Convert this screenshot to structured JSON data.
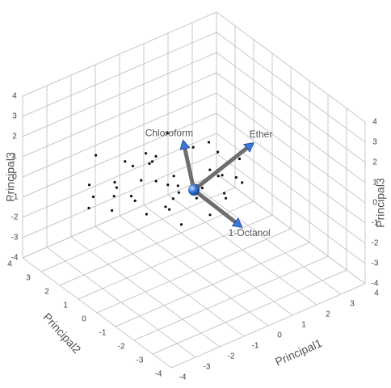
{
  "chart_data": {
    "type": "scatter3d",
    "x_label": "Principal1",
    "y_label": "Principal2",
    "z_label": "Principal3",
    "xlim": [
      -4,
      4
    ],
    "ylim": [
      -4,
      4
    ],
    "zlim": [
      -4,
      4
    ],
    "xticks": [
      -4,
      -3,
      -2,
      -1,
      0,
      1,
      2,
      3,
      4
    ],
    "yticks": [
      -4,
      -3,
      -2,
      -1,
      0,
      1,
      2,
      3,
      4
    ],
    "zticks": [
      -4,
      -3,
      -2,
      -1,
      0,
      1,
      2,
      3,
      4
    ],
    "grid": true,
    "point_color": "#111111",
    "points": {
      "x": [
        -3,
        -2.8,
        -2.5,
        -2.4,
        -2.2,
        -2,
        -1.9,
        -1.8,
        -1.6,
        -1.5,
        -1.4,
        -1.2,
        -1.1,
        -1,
        -0.9,
        -0.8,
        -0.7,
        -0.6,
        -0.5,
        -0.4,
        -0.3,
        -0.2,
        -0.1,
        0,
        0.1,
        0.2,
        0.3,
        0.4,
        0.5,
        0.6,
        0.7,
        0.8,
        0.9,
        1,
        1.1,
        1.2,
        1.3,
        1.4,
        1.5,
        1.6,
        -1.3,
        -0.6,
        0.2,
        -2.1,
        0.8
      ],
      "y": [
        1.5,
        2,
        1,
        2.5,
        0.5,
        1.8,
        2.8,
        0.2,
        1.2,
        2.2,
        -0.3,
        1.6,
        0.6,
        2.4,
        -0.5,
        1,
        0.2,
        1.8,
        -0.8,
        0.8,
        2,
        0,
        -1,
        1.4,
        0.4,
        -0.6,
        1.2,
        -1.2,
        0.2,
        2.2,
        -0.4,
        0.9,
        -1.1,
        0.5,
        -0.2,
        1.6,
        -0.9,
        0.3,
        -0.5,
        0.8,
        2.6,
        0.3,
        2.5,
        0.1,
        1.9
      ],
      "z": [
        0.2,
        -0.8,
        1,
        -0.2,
        0.5,
        -1.2,
        0.8,
        -0.4,
        1.2,
        -0.6,
        0.1,
        -1,
        0.6,
        0.3,
        -0.9,
        1.4,
        -0.2,
        0.9,
        0.4,
        -1.3,
        0.1,
        1.1,
        -0.5,
        -0.7,
        0.7,
        1.3,
        -1.1,
        0.2,
        -0.3,
        1,
        0.6,
        -0.8,
        0.9,
        1.5,
        -0.6,
        0.4,
        0.3,
        -0.2,
        1.1,
        0.5,
        -1.4,
        0.8,
        -0.4,
        1.5,
        -1.5
      ]
    },
    "vectors": [
      {
        "name": "Chloroform",
        "x": 0.5,
        "y": 1.2,
        "z": 1.24
      },
      {
        "name": "Ether",
        "x": 1.6,
        "y": -1,
        "z": 2.09
      },
      {
        "name": "1-Octanol",
        "x": 1.2,
        "y": -0.9,
        "z": -1.77
      }
    ],
    "vector_color": "#6e6e6e",
    "arrow_color": "#3a78d8"
  }
}
